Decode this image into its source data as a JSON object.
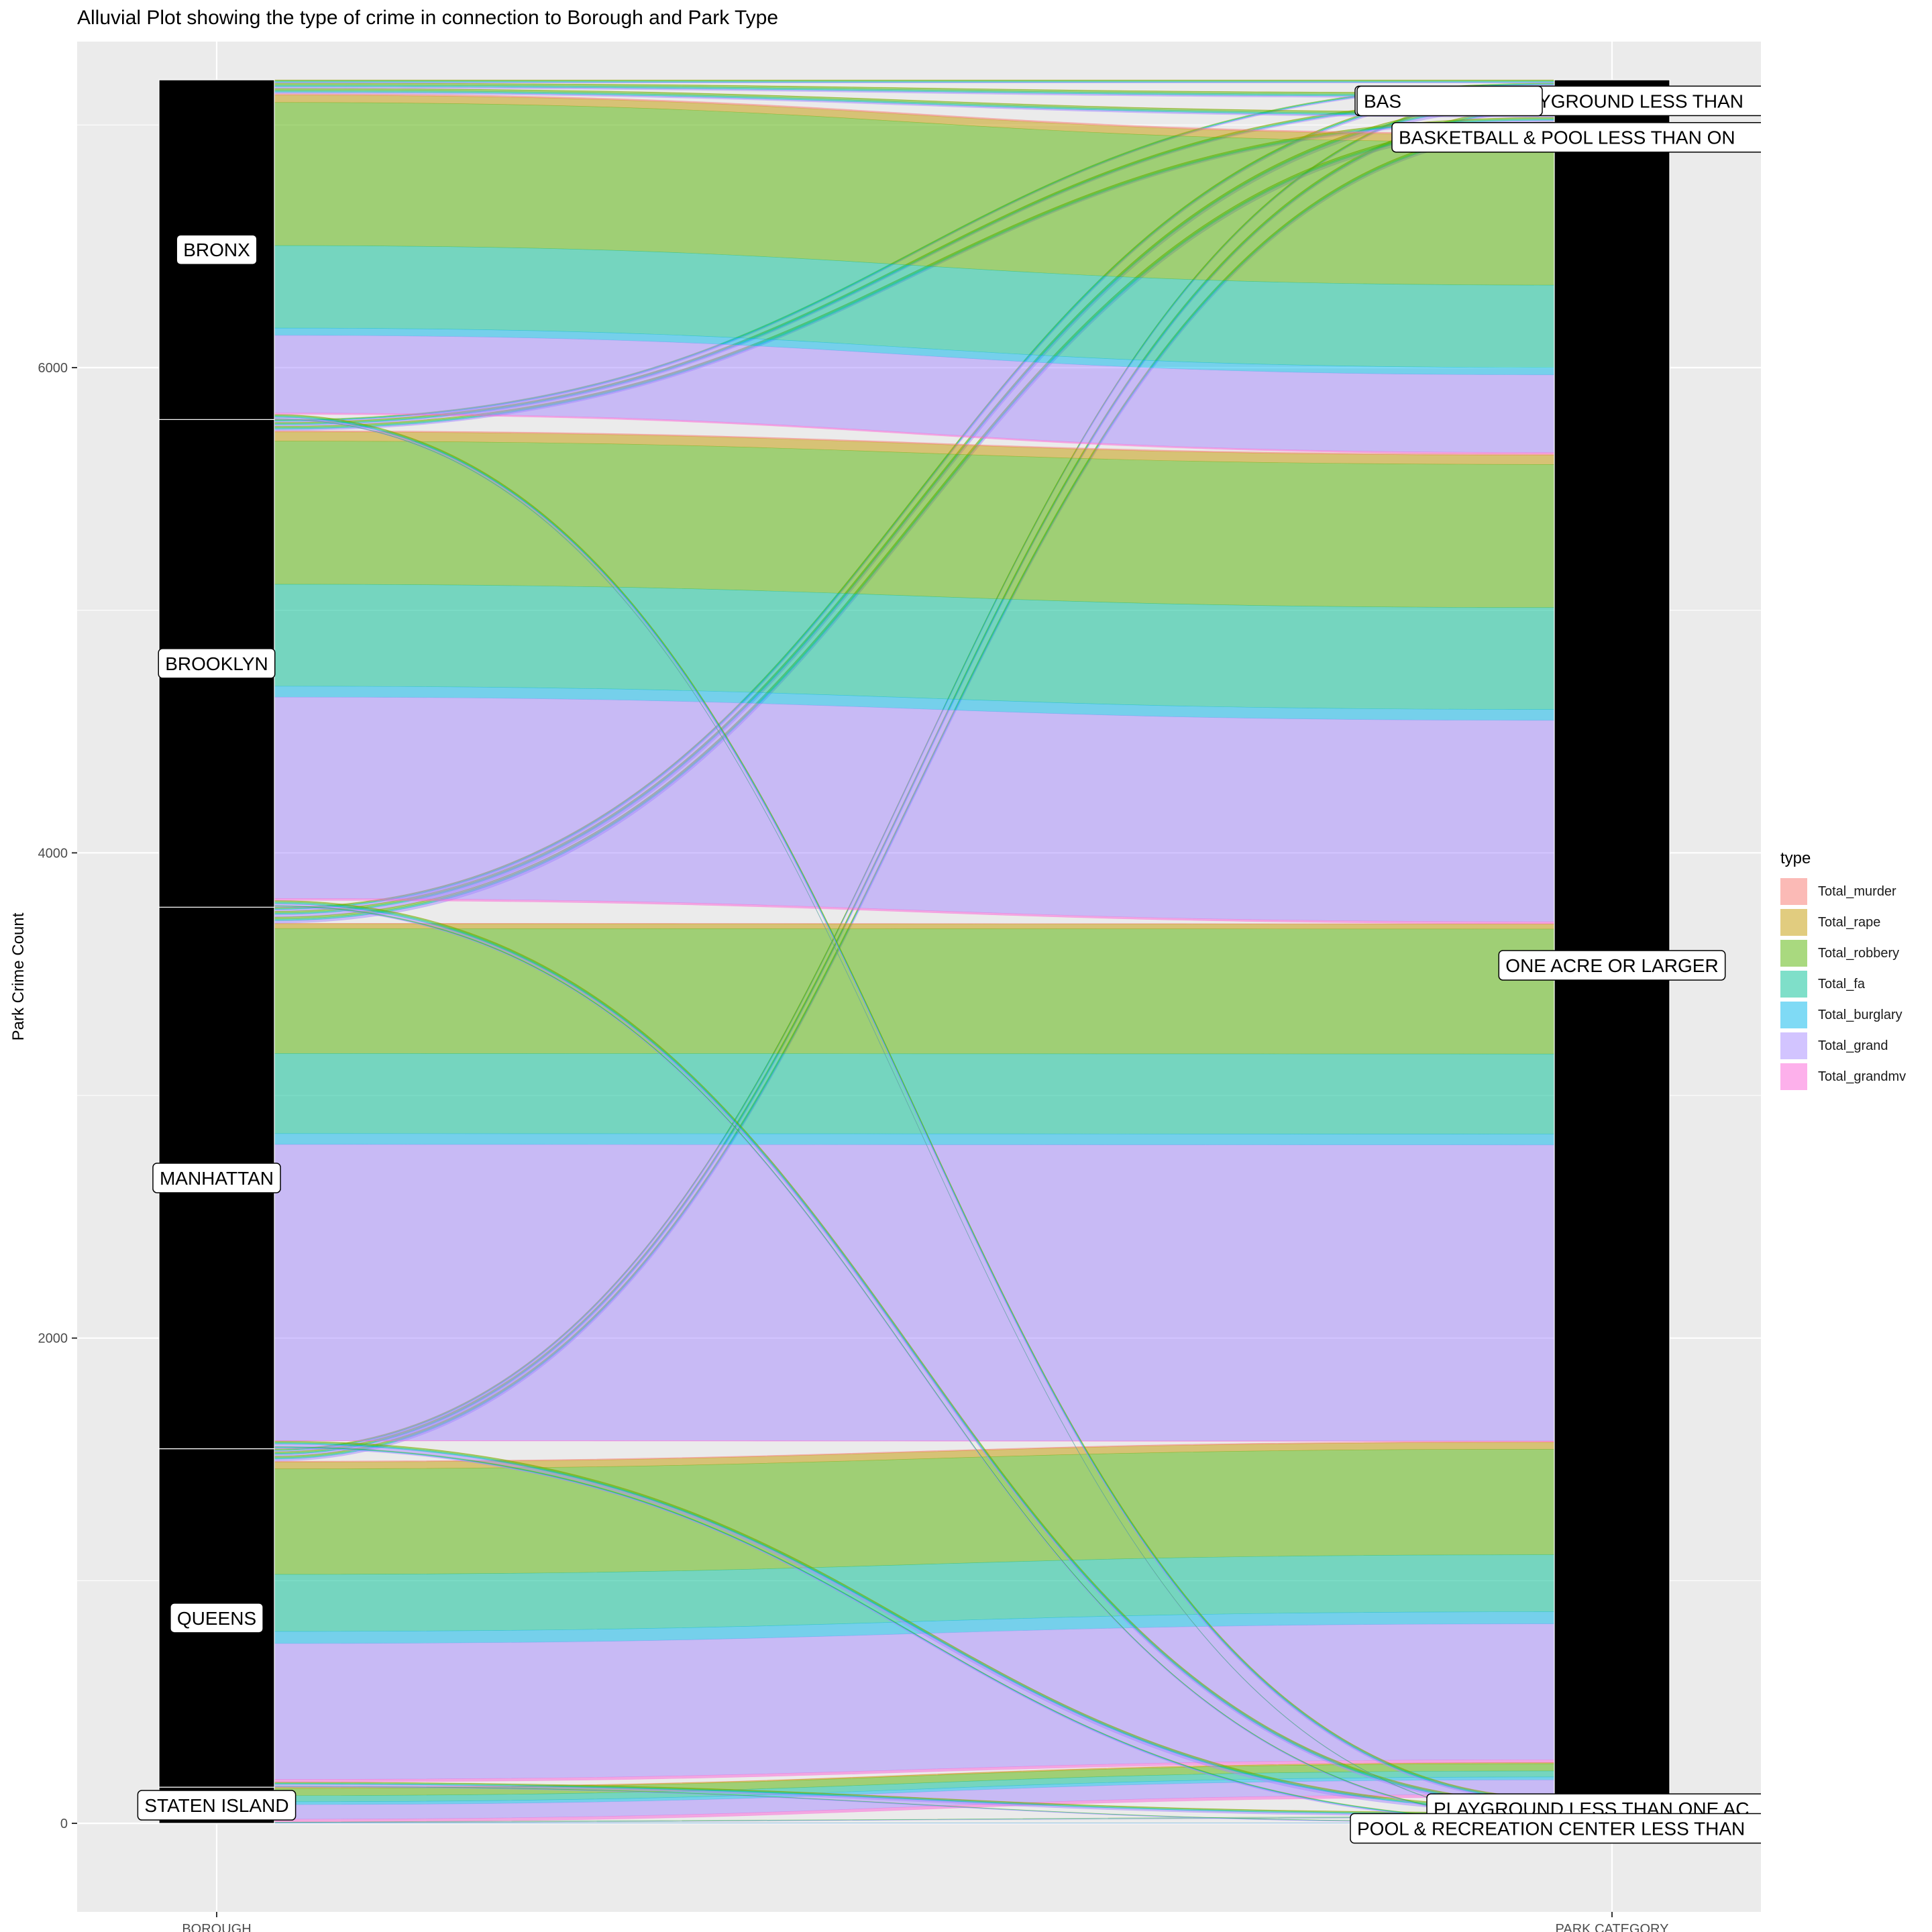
{
  "chart_data": {
    "type": "alluvial",
    "title": "Alluvial Plot showing the type of crime in connection to Borough and Park Type",
    "ylabel": "Park Crime Count",
    "xlabel": "",
    "axes": [
      "BOROUGH",
      "PARK CATEGORY"
    ],
    "ylim": [
      -330,
      7260
    ],
    "yticks": [
      0,
      2000,
      4000,
      6000
    ],
    "grid": true,
    "legend_title": "type",
    "legend_position": "right",
    "types": [
      {
        "name": "Total_murder",
        "color": "#F8766D"
      },
      {
        "name": "Total_rape",
        "color": "#C49A00"
      },
      {
        "name": "Total_robbery",
        "color": "#53B400"
      },
      {
        "name": "Total_fa",
        "color": "#00C094"
      },
      {
        "name": "Total_burglary",
        "color": "#00B6EB"
      },
      {
        "name": "Total_grand",
        "color": "#A58AFF"
      },
      {
        "name": "Total_grandmv",
        "color": "#FB61D7"
      }
    ],
    "boroughs": [
      "STATEN ISLAND",
      "QUEENS",
      "MANHATTAN",
      "BROOKLYN",
      "BRONX"
    ],
    "park_categories": [
      "POOL & RECREATION CENTER LESS THAN ONE ACRE",
      "PLAYGROUND LESS THAN ONE ACRE",
      "ONE ACRE OR LARGER",
      "BASKETBALL & POOL LESS THAN ONE ACRE",
      "BASKETBALL & PLAYGROUND LESS THAN ONE ACRE",
      "BASKETBALL LESS THAN ONE ACRE"
    ],
    "borough_labels": [
      "BRONX",
      "BROOKLYN",
      "MANHATTAN",
      "QUEENS",
      "STATEN ISLAND"
    ],
    "park_labels": [
      "BASKETBALL & PLAYGROUND LESS THAN",
      "BAS",
      "BASKETBALL & POOL LESS THAN ON",
      "ONE ACRE OR LARGER",
      "PLAYGROUND LESS THAN ONE AC",
      "POOL & RECREATION CENTER LESS THAN"
    ],
    "flows": [
      {
        "borough": "STATEN ISLAND",
        "park": "ONE ACRE OR LARGER",
        "values": [
          1,
          4,
          30,
          25,
          12,
          60,
          12
        ]
      },
      {
        "borough": "STATEN ISLAND",
        "park": "PLAYGROUND LESS THAN ONE ACRE",
        "values": [
          0,
          0,
          1,
          1,
          0,
          1,
          0
        ]
      },
      {
        "borough": "STATEN ISLAND",
        "park": "POOL & RECREATION CENTER LESS THAN ONE ACRE",
        "values": [
          0,
          0,
          0,
          1,
          0,
          1,
          0
        ]
      },
      {
        "borough": "QUEENS",
        "park": "POOL & RECREATION CENTER LESS THAN ONE ACRE",
        "values": [
          0,
          0,
          1,
          1,
          0,
          2,
          0
        ]
      },
      {
        "borough": "QUEENS",
        "park": "PLAYGROUND LESS THAN ONE ACRE",
        "values": [
          0,
          1,
          4,
          4,
          1,
          7,
          0
        ]
      },
      {
        "borough": "QUEENS",
        "park": "ONE ACRE OR LARGER",
        "values": [
          4,
          28,
          435,
          235,
          50,
          560,
          11
        ]
      },
      {
        "borough": "QUEENS",
        "park": "BASKETBALL & POOL LESS THAN ONE ACRE",
        "values": [
          0,
          1,
          6,
          5,
          1,
          8,
          0
        ]
      },
      {
        "borough": "QUEENS",
        "park": "BASKETBALL & PLAYGROUND LESS THAN ONE ACRE",
        "values": [
          0,
          1,
          6,
          4,
          1,
          6,
          0
        ]
      },
      {
        "borough": "QUEENS",
        "park": "BASKETBALL LESS THAN ONE ACRE",
        "values": [
          0,
          1,
          4,
          3,
          0,
          4,
          0
        ]
      },
      {
        "borough": "MANHATTAN",
        "park": "POOL & RECREATION CENTER LESS THAN ONE ACRE",
        "values": [
          0,
          0,
          2,
          2,
          1,
          4,
          0
        ]
      },
      {
        "borough": "MANHATTAN",
        "park": "PLAYGROUND LESS THAN ONE ACRE",
        "values": [
          0,
          1,
          6,
          4,
          2,
          10,
          0
        ]
      },
      {
        "borough": "MANHATTAN",
        "park": "ONE ACRE OR LARGER",
        "values": [
          2,
          20,
          515,
          330,
          45,
          1220,
          2
        ]
      },
      {
        "borough": "MANHATTAN",
        "park": "BASKETBALL & POOL LESS THAN ONE ACRE",
        "values": [
          0,
          1,
          8,
          6,
          1,
          10,
          0
        ]
      },
      {
        "borough": "MANHATTAN",
        "park": "BASKETBALL & PLAYGROUND LESS THAN ONE ACRE",
        "values": [
          0,
          1,
          7,
          5,
          1,
          10,
          0
        ]
      },
      {
        "borough": "MANHATTAN",
        "park": "BASKETBALL LESS THAN ONE ACRE",
        "values": [
          0,
          1,
          4,
          4,
          1,
          6,
          0
        ]
      },
      {
        "borough": "BROOKLYN",
        "park": "POOL & RECREATION CENTER LESS THAN ONE ACRE",
        "values": [
          0,
          0,
          2,
          2,
          0,
          3,
          0
        ]
      },
      {
        "borough": "BROOKLYN",
        "park": "PLAYGROUND LESS THAN ONE ACRE",
        "values": [
          0,
          1,
          6,
          6,
          1,
          7,
          0
        ]
      },
      {
        "borough": "BROOKLYN",
        "park": "ONE ACRE OR LARGER",
        "values": [
          5,
          38,
          590,
          420,
          45,
          830,
          8
        ]
      },
      {
        "borough": "BROOKLYN",
        "park": "BASKETBALL & POOL LESS THAN ONE ACRE",
        "values": [
          0,
          1,
          6,
          5,
          1,
          6,
          0
        ]
      },
      {
        "borough": "BROOKLYN",
        "park": "BASKETBALL & PLAYGROUND LESS THAN ONE ACRE",
        "values": [
          0,
          1,
          5,
          4,
          1,
          5,
          0
        ]
      },
      {
        "borough": "BROOKLYN",
        "park": "BASKETBALL LESS THAN ONE ACRE",
        "values": [
          0,
          0,
          3,
          3,
          1,
          4,
          0
        ]
      },
      {
        "borough": "BRONX",
        "park": "POOL & RECREATION CENTER LESS THAN ONE ACRE",
        "values": [
          0,
          0,
          1,
          1,
          0,
          1,
          0
        ]
      },
      {
        "borough": "BRONX",
        "park": "PLAYGROUND LESS THAN ONE ACRE",
        "values": [
          0,
          1,
          5,
          5,
          1,
          6,
          0
        ]
      },
      {
        "borough": "BRONX",
        "park": "ONE ACRE OR LARGER",
        "values": [
          6,
          30,
          590,
          340,
          30,
          320,
          6
        ]
      },
      {
        "borough": "BRONX",
        "park": "BASKETBALL & POOL LESS THAN ONE ACRE",
        "values": [
          0,
          1,
          8,
          6,
          1,
          6,
          0
        ]
      },
      {
        "borough": "BRONX",
        "park": "BASKETBALL & PLAYGROUND LESS THAN ONE ACRE",
        "values": [
          0,
          1,
          8,
          6,
          1,
          6,
          0
        ]
      },
      {
        "borough": "BRONX",
        "park": "BASKETBALL LESS THAN ONE ACRE",
        "values": [
          0,
          1,
          4,
          4,
          1,
          3,
          0
        ]
      }
    ]
  }
}
